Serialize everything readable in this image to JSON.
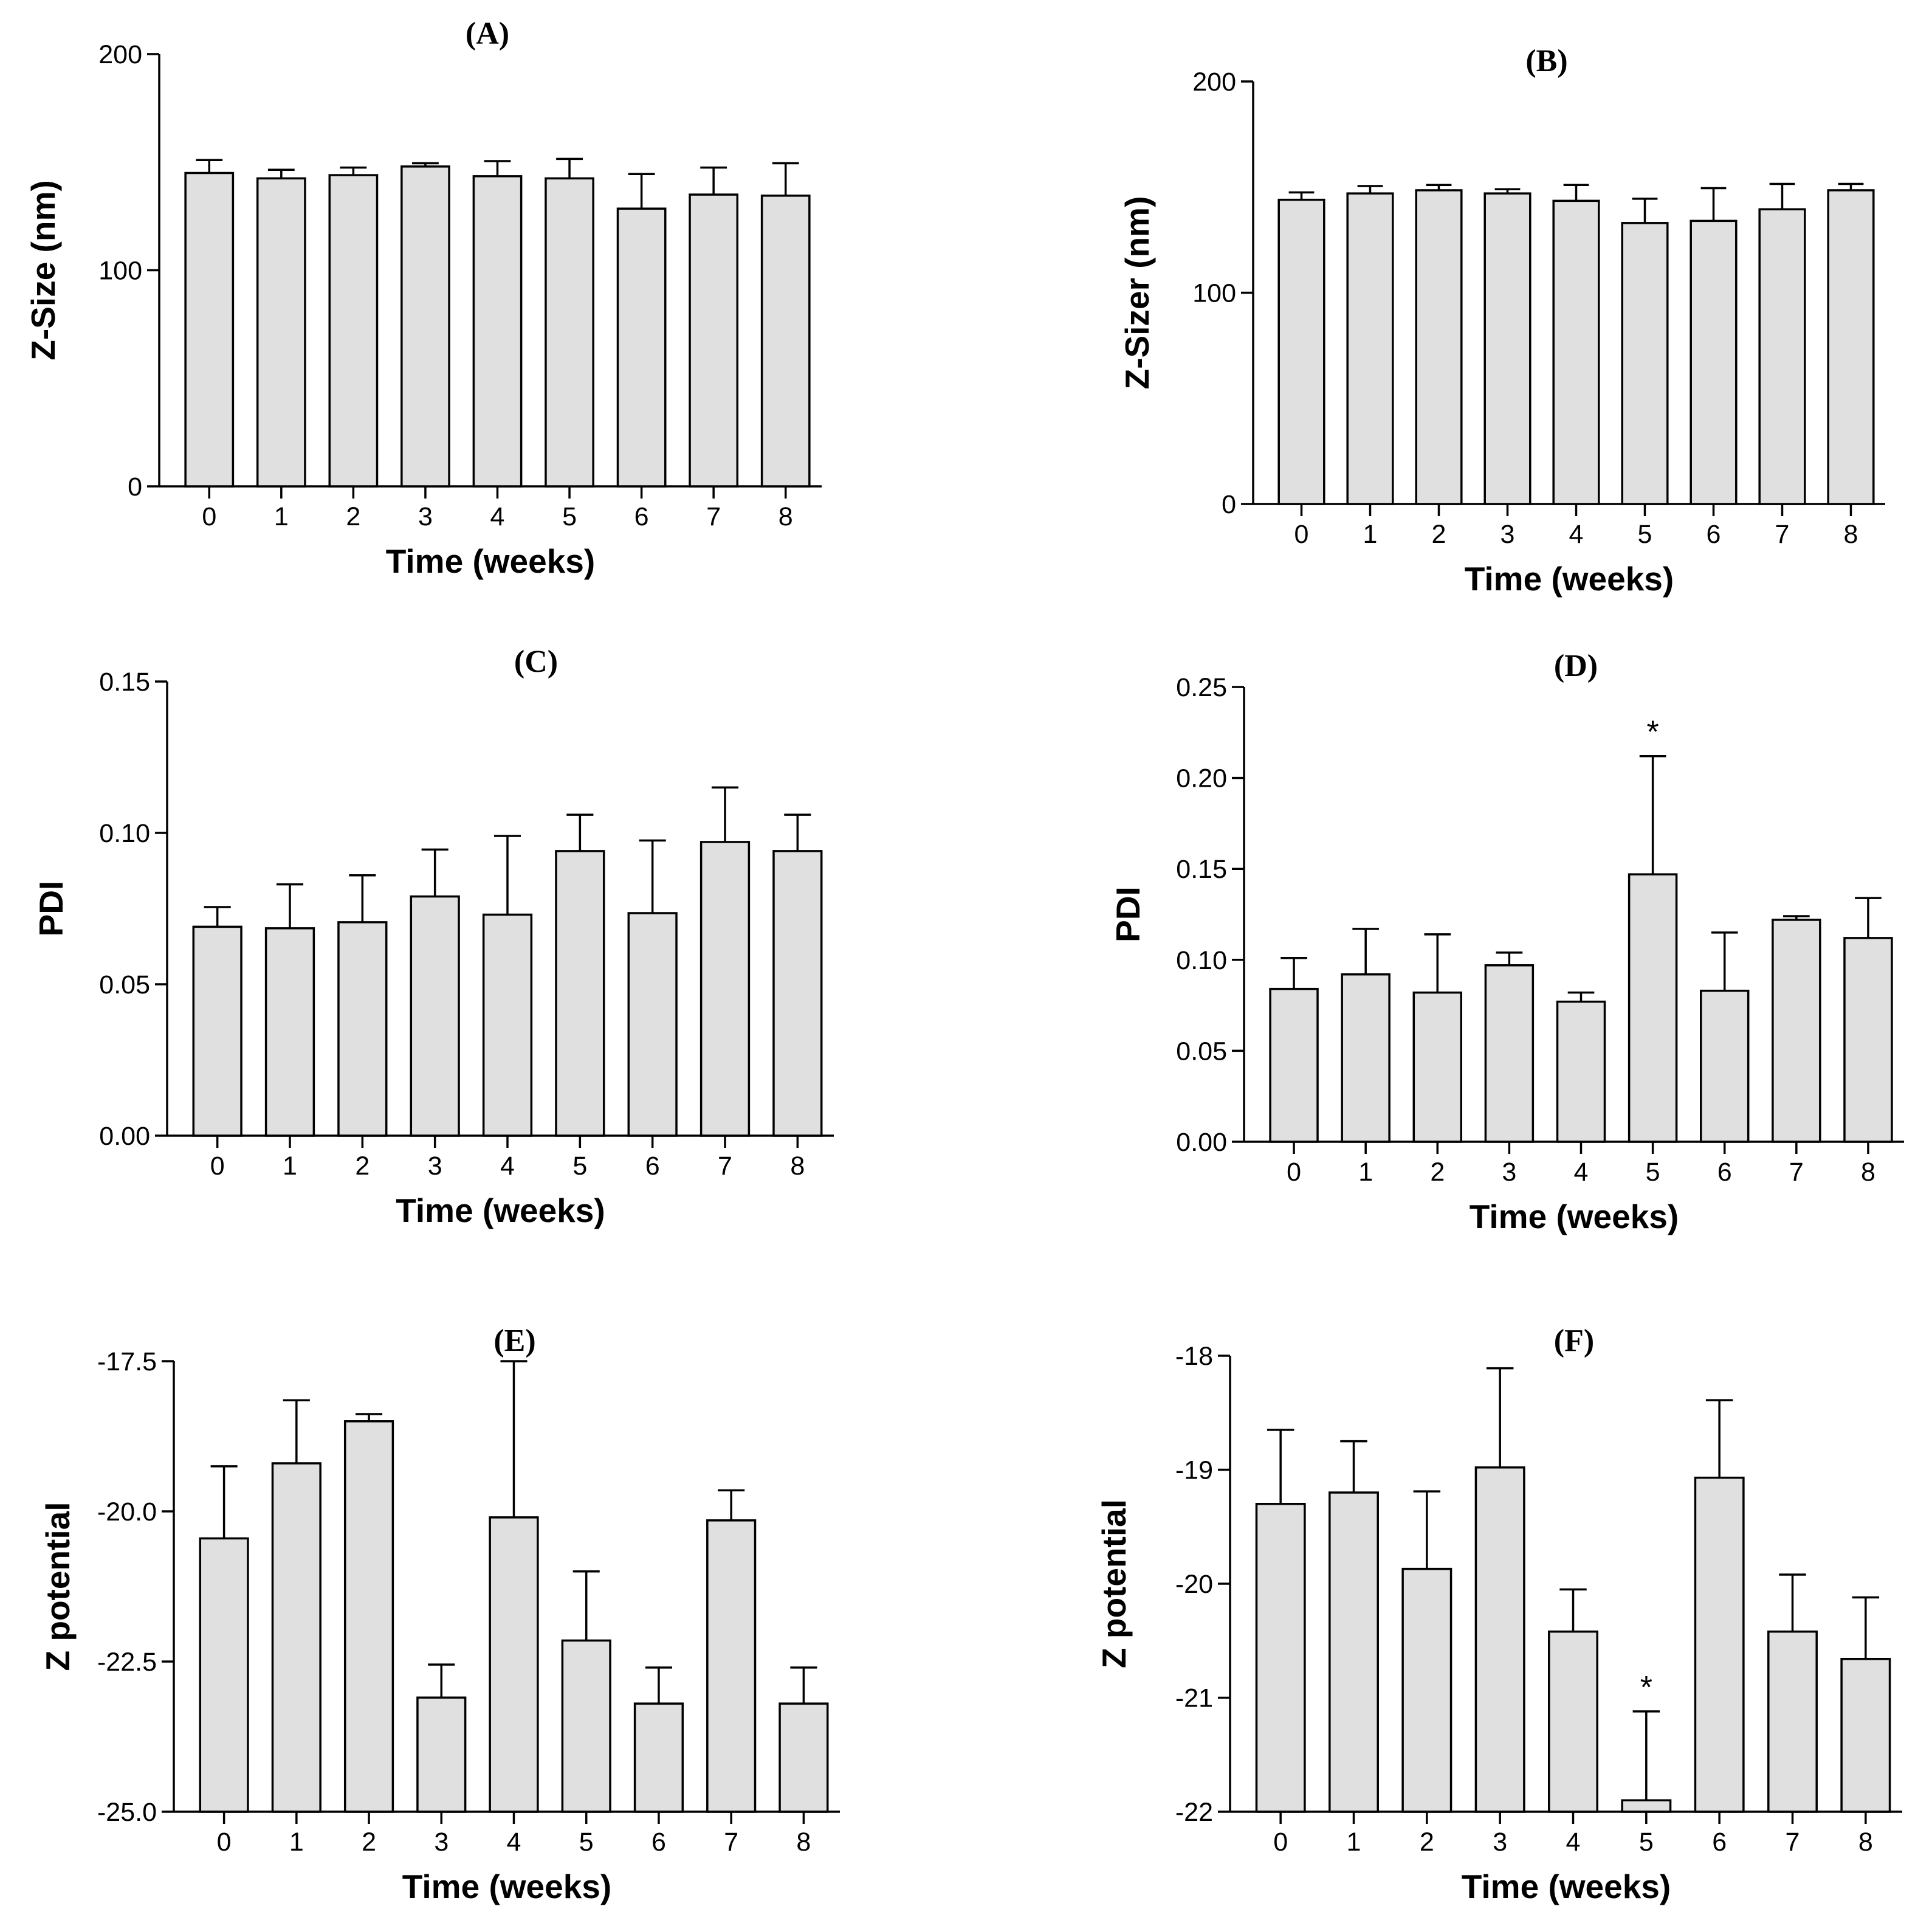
{
  "chart_data": [
    {
      "type": "bar",
      "title": "(A)",
      "xlabel": "Time (weeks)",
      "ylabel": "Z-Size (nm)",
      "categories": [
        "0",
        "1",
        "2",
        "3",
        "4",
        "5",
        "6",
        "7",
        "8"
      ],
      "values": [
        145,
        142.5,
        144,
        148,
        143.5,
        142.5,
        128.5,
        135,
        134.5
      ],
      "errors": [
        6,
        4,
        3.5,
        1.5,
        7,
        9,
        16,
        12.5,
        15
      ],
      "ylim": [
        0,
        200
      ],
      "yticks": [
        0,
        100,
        200
      ],
      "ytick_labels": [
        "0",
        "100",
        "200"
      ],
      "annotations": []
    },
    {
      "type": "bar",
      "title": "(B)",
      "xlabel": "Time (weeks)",
      "ylabel": "Z-Sizer (nm)",
      "categories": [
        "0",
        "1",
        "2",
        "3",
        "4",
        "5",
        "6",
        "7",
        "8"
      ],
      "values": [
        144,
        147,
        148.5,
        147,
        143.5,
        133,
        134,
        139.5,
        148.5
      ],
      "errors": [
        3.5,
        3.5,
        2.5,
        2,
        7.5,
        11.5,
        15.5,
        12,
        3
      ],
      "ylim": [
        0,
        200
      ],
      "yticks": [
        0,
        100,
        200
      ],
      "ytick_labels": [
        "0",
        "100",
        "200"
      ],
      "annotations": []
    },
    {
      "type": "bar",
      "title": "(C)",
      "xlabel": "Time (weeks)",
      "ylabel": "PDI",
      "categories": [
        "0",
        "1",
        "2",
        "3",
        "4",
        "5",
        "6",
        "7",
        "8"
      ],
      "values": [
        0.069,
        0.0685,
        0.0705,
        0.079,
        0.073,
        0.094,
        0.0735,
        0.097,
        0.094
      ],
      "errors": [
        0.0065,
        0.0145,
        0.0155,
        0.0155,
        0.026,
        0.012,
        0.024,
        0.018,
        0.012
      ],
      "ylim": [
        0,
        0.15
      ],
      "yticks": [
        0,
        0.05,
        0.1,
        0.15
      ],
      "ytick_labels": [
        "0.00",
        "0.05",
        "0.10",
        "0.15"
      ],
      "annotations": []
    },
    {
      "type": "bar",
      "title": "(D)",
      "xlabel": "Time (weeks)",
      "ylabel": "PDI",
      "categories": [
        "0",
        "1",
        "2",
        "3",
        "4",
        "5",
        "6",
        "7",
        "8"
      ],
      "values": [
        0.084,
        0.092,
        0.082,
        0.097,
        0.077,
        0.147,
        0.083,
        0.122,
        0.112
      ],
      "errors": [
        0.017,
        0.025,
        0.032,
        0.007,
        0.005,
        0.065,
        0.032,
        0.002,
        0.022
      ],
      "ylim": [
        0,
        0.25
      ],
      "yticks": [
        0,
        0.05,
        0.1,
        0.15,
        0.2,
        0.25
      ],
      "ytick_labels": [
        "0.00",
        "0.05",
        "0.10",
        "0.15",
        "0.20",
        "0.25"
      ],
      "annotations": [
        {
          "category": "5",
          "text": "*"
        }
      ]
    },
    {
      "type": "bar",
      "title": "(E)",
      "xlabel": "Time (weeks)",
      "ylabel": "Z potential",
      "categories": [
        "0",
        "1",
        "2",
        "3",
        "4",
        "5",
        "6",
        "7",
        "8"
      ],
      "values": [
        -20.45,
        -19.2,
        -18.5,
        -23.1,
        -20.1,
        -22.15,
        -23.2,
        -20.15,
        -23.2
      ],
      "errors": [
        1.2,
        1.05,
        0.12,
        0.55,
        2.6,
        1.15,
        0.6,
        0.5,
        0.6
      ],
      "ylim": [
        -25,
        -17.5
      ],
      "yticks": [
        -25,
        -22.5,
        -20,
        -17.5
      ],
      "ytick_labels": [
        "-25.0",
        "-22.5",
        "-20.0",
        "-17.5"
      ],
      "annotations": []
    },
    {
      "type": "bar",
      "title": "(F)",
      "xlabel": "Time (weeks)",
      "ylabel": "Z potential",
      "categories": [
        "0",
        "1",
        "2",
        "3",
        "4",
        "5",
        "6",
        "7",
        "8"
      ],
      "values": [
        -19.3,
        -19.2,
        -19.87,
        -18.98,
        -20.42,
        -21.9,
        -19.07,
        -20.42,
        -20.66
      ],
      "errors": [
        0.65,
        0.45,
        0.68,
        0.87,
        0.37,
        0.78,
        0.68,
        0.5,
        0.54
      ],
      "ylim": [
        -22,
        -18
      ],
      "yticks": [
        -22,
        -21,
        -20,
        -19,
        -18
      ],
      "ytick_labels": [
        "-22",
        "-21",
        "-20",
        "-19",
        "-18"
      ],
      "annotations": [
        {
          "category": "5",
          "text": "*"
        }
      ]
    }
  ]
}
